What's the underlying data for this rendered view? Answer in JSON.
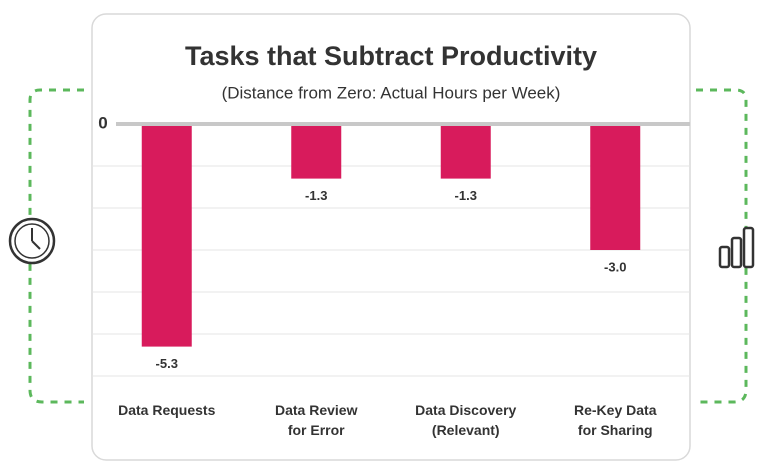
{
  "chart_data": {
    "type": "bar",
    "title": "Tasks that Subtract Productivity",
    "subtitle": "(Distance from Zero: Actual Hours per Week)",
    "categories": [
      "Data Requests",
      "Data Review\nfor Error",
      "Data Discovery\n(Relevant)",
      "Re-Key Data\nfor Sharing"
    ],
    "values": [
      -5.3,
      -1.3,
      -1.3,
      -3.0
    ],
    "value_labels": [
      "-5.3",
      "-1.3",
      "-1.3",
      "-3.0"
    ],
    "color": "#d81b5c",
    "ylim": [
      -6,
      0
    ],
    "yticks": [
      0
    ],
    "grid": true,
    "grid_lines": [
      -1,
      -2,
      -3,
      -4,
      -5,
      -6
    ]
  }
}
